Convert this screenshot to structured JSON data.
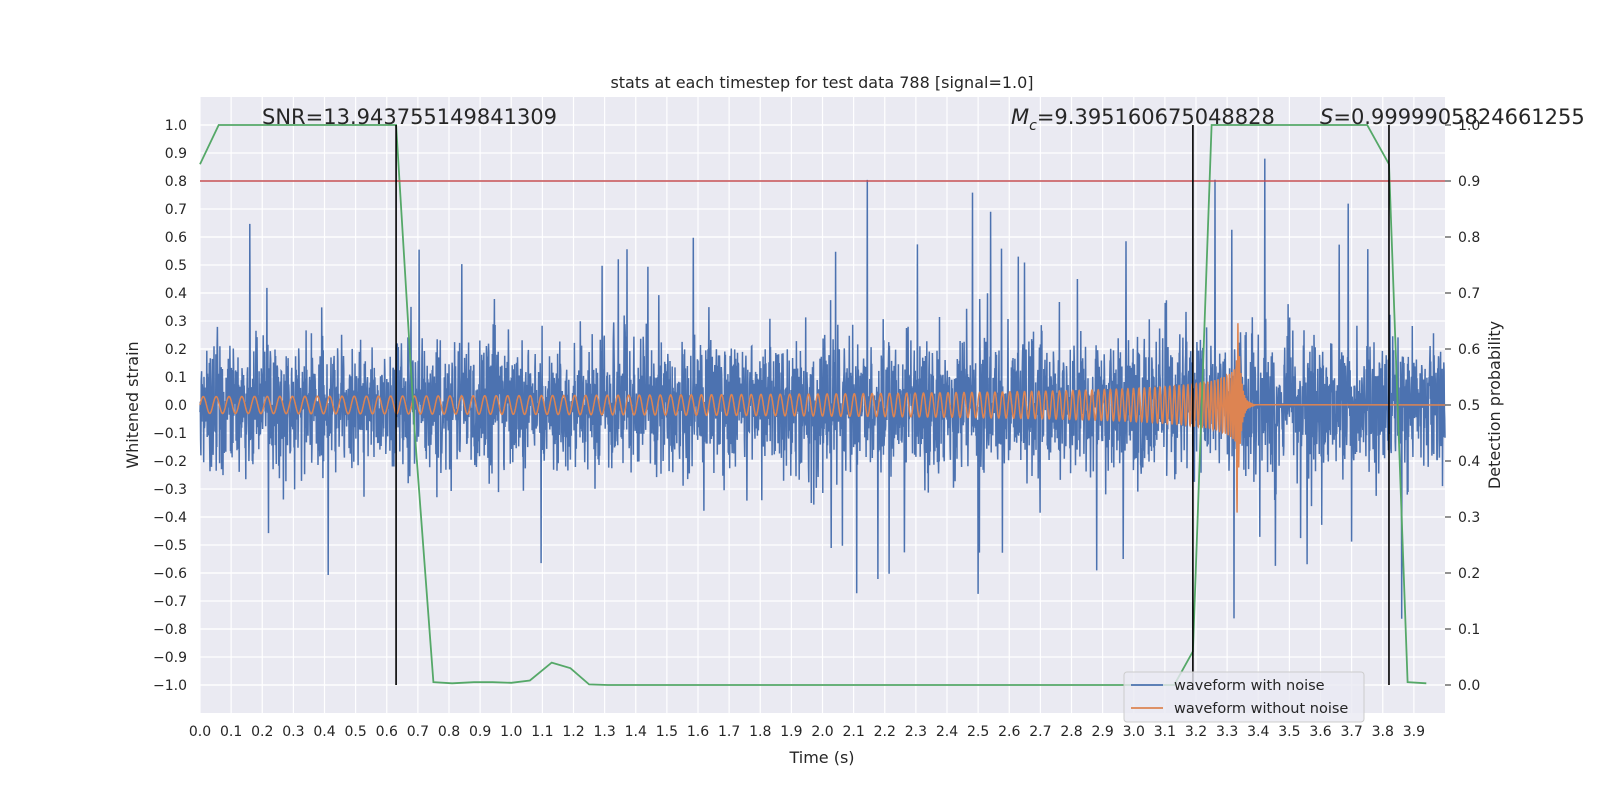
{
  "chart_data": {
    "type": "line",
    "title": "stats at each timestep for test data 788 [signal=1.0]",
    "xlabel": "Time (s)",
    "ylabel": "Whitened strain",
    "y2label": "Detection probability",
    "xlim": [
      0.0,
      4.0
    ],
    "ylim": [
      -1.1,
      1.1
    ],
    "y2lim": [
      -0.05,
      1.05
    ],
    "x_ticks": [
      "0.0",
      "0.1",
      "0.2",
      "0.3",
      "0.4",
      "0.5",
      "0.6",
      "0.7",
      "0.8",
      "0.9",
      "1.0",
      "1.1",
      "1.2",
      "1.3",
      "1.4",
      "1.5",
      "1.6",
      "1.7",
      "1.8",
      "1.9",
      "2.0",
      "2.1",
      "2.2",
      "2.3",
      "2.4",
      "2.5",
      "2.6",
      "2.7",
      "2.8",
      "2.9",
      "3.0",
      "3.1",
      "3.2",
      "3.3",
      "3.4",
      "3.5",
      "3.6",
      "3.7",
      "3.8",
      "3.9"
    ],
    "y_ticks": [
      "1.0",
      "0.9",
      "0.8",
      "0.7",
      "0.6",
      "0.5",
      "0.4",
      "0.3",
      "0.2",
      "0.1",
      "0.0",
      "−0.1",
      "−0.2",
      "−0.3",
      "−0.4",
      "−0.5",
      "−0.6",
      "−0.7",
      "−0.8",
      "−0.9",
      "−1.0"
    ],
    "y2_ticks": [
      "1.0",
      "0.9",
      "0.8",
      "0.7",
      "0.6",
      "0.5",
      "0.4",
      "0.3",
      "0.2",
      "0.1",
      "0.0"
    ],
    "annotations": {
      "snr": "SNR=13.943755149841309",
      "mc_symbol": "M",
      "mc_sub": "c",
      "mc_value": "=9.395160675048828",
      "s_symbol": "S",
      "s_value": "=0.9999905824661255"
    },
    "threshold": {
      "value": 0.9,
      "axis": "y2",
      "color": "#c44e52"
    },
    "vertical_lines": [
      0.63,
      3.19,
      3.82
    ],
    "series": [
      {
        "name": "waveform with noise",
        "color": "#4c72b0",
        "axis": "y",
        "description": "noisy whitened strain, amplitude roughly ±0.4 with spikes to ±0.9"
      },
      {
        "name": "waveform without noise",
        "color": "#dd8452",
        "axis": "y",
        "chirp": {
          "start_amplitude": 0.03,
          "peak_amplitude": 0.47,
          "peak_time": 3.33,
          "end_time": 3.36,
          "start_frequency_hz": 24
        }
      },
      {
        "name": "detection probability",
        "color": "#55a868",
        "axis": "y2",
        "x": [
          0.0,
          0.06,
          0.13,
          0.19,
          0.25,
          0.31,
          0.38,
          0.44,
          0.5,
          0.56,
          0.63,
          0.69,
          0.75,
          0.81,
          0.88,
          0.94,
          1.0,
          1.06,
          1.13,
          1.19,
          1.25,
          1.31,
          1.38,
          1.5,
          2.0,
          2.5,
          3.0,
          3.13,
          3.19,
          3.25,
          3.31,
          3.38,
          3.44,
          3.5,
          3.56,
          3.63,
          3.69,
          3.75,
          3.82,
          3.88,
          3.94
        ],
        "y": [
          0.93,
          1.0,
          1.0,
          1.0,
          1.0,
          1.0,
          1.0,
          1.0,
          1.0,
          1.0,
          1.0,
          0.45,
          0.005,
          0.003,
          0.005,
          0.005,
          0.004,
          0.008,
          0.04,
          0.03,
          0.001,
          0.0,
          0.0,
          0.0,
          0.0,
          0.0,
          0.0,
          0.0,
          0.06,
          1.0,
          1.0,
          1.0,
          1.0,
          1.0,
          1.0,
          1.0,
          1.0,
          1.0,
          0.93,
          0.005,
          0.003
        ]
      }
    ],
    "legend": {
      "location": "lower-right",
      "entries": [
        "waveform with noise",
        "waveform without noise"
      ]
    }
  }
}
